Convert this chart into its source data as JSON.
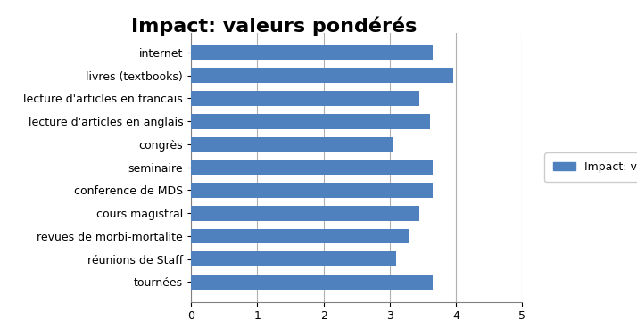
{
  "title": "Impact: valeurs pondérés",
  "categories": [
    "tournées",
    "réunions de Staff",
    "revues de morbi-mortalite",
    "cours magistral",
    "conference de MDS",
    "seminaire",
    "congrès",
    "lecture d'articles en anglais",
    "lecture d'articles en francais",
    "livres (textbooks)",
    "internet"
  ],
  "values": [
    3.65,
    3.1,
    3.3,
    3.45,
    3.65,
    3.65,
    3.05,
    3.6,
    3.45,
    3.95,
    3.65
  ],
  "bar_color": "#4E81BD",
  "legend_label": "Impact: valeurs pondérés",
  "xlim": [
    0,
    5
  ],
  "xticks": [
    0,
    1,
    2,
    3,
    4,
    5
  ],
  "background_color": "#ffffff",
  "title_fontsize": 16,
  "tick_fontsize": 9,
  "legend_fontsize": 9,
  "bar_height": 0.65
}
